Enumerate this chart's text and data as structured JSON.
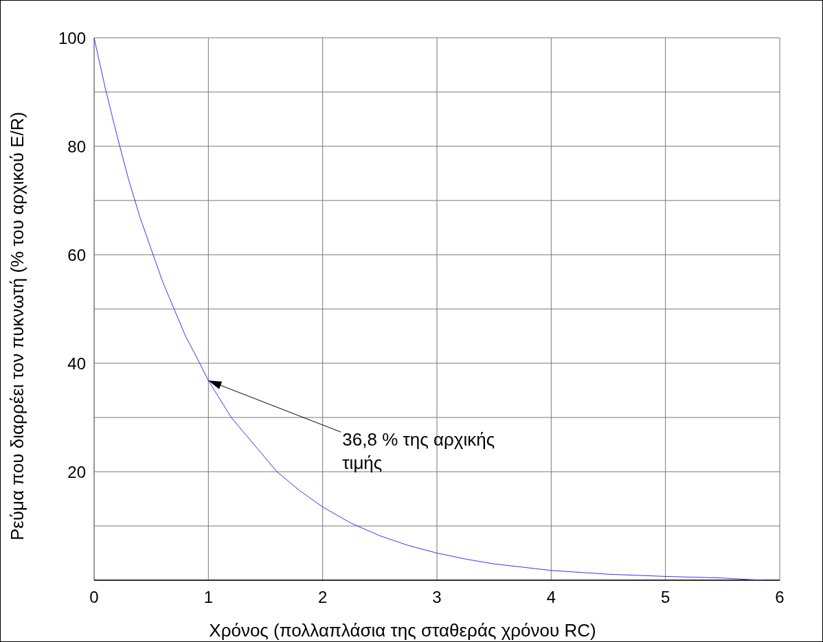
{
  "chart_data": {
    "type": "line",
    "xlabel": "Χρόνος (πολλαπλάσια της σταθεράς χρόνου RC)",
    "ylabel": "Ρεύμα που διαρρέει τον πυκνωτή (% του αρχικού E/R)",
    "series": [
      {
        "color": "#3333ff",
        "x": [
          0,
          0.1,
          0.2,
          0.3,
          0.4,
          0.5,
          0.6,
          0.7,
          0.8,
          0.9,
          1,
          1.2,
          1.4,
          1.6,
          1.8,
          2,
          2.25,
          2.5,
          2.75,
          3,
          3.25,
          3.5,
          3.75,
          4,
          4.5,
          5,
          5.5,
          5.85
        ],
        "values": [
          100,
          90.5,
          82,
          74,
          67,
          61,
          55,
          50,
          45,
          41,
          36.8,
          30,
          25,
          20,
          16.5,
          13.5,
          10.5,
          8.2,
          6.4,
          5,
          3.9,
          3,
          2.4,
          1.8,
          1.1,
          0.7,
          0.4,
          0
        ]
      }
    ],
    "xlim": [
      0,
      6
    ],
    "xticks": [
      0,
      1,
      2,
      3,
      4,
      5,
      6
    ],
    "ylim": [
      0,
      100
    ],
    "yticks": [
      {
        "value": 0,
        "label": null
      },
      {
        "value": 10,
        "label": null
      },
      20,
      {
        "value": 30,
        "label": null
      },
      40,
      {
        "value": 50,
        "label": null
      },
      60,
      {
        "value": 70,
        "label": null
      },
      80,
      {
        "value": 90,
        "label": null
      },
      100
    ],
    "grid": true,
    "marker": "none",
    "line_style": "solid",
    "annotations": [
      {
        "text": "36,8 % της αρχικής τιμής",
        "x": 1,
        "y": 36.8
      }
    ]
  }
}
